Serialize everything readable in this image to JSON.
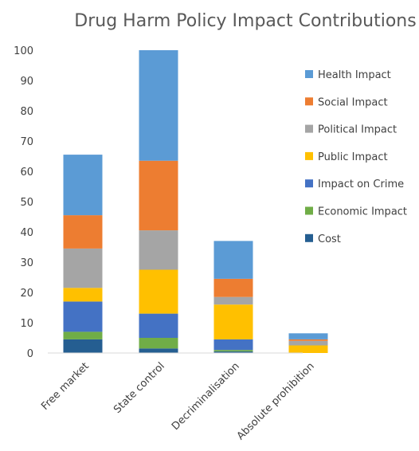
{
  "chart_data": {
    "type": "bar",
    "stacked": true,
    "title": "Drug Harm Policy Impact Contributions",
    "xlabel": "",
    "ylabel": "",
    "ylim": [
      0,
      100
    ],
    "yticks": [
      0,
      10,
      20,
      30,
      40,
      50,
      60,
      70,
      80,
      90,
      100
    ],
    "grid": false,
    "legend_position": "right",
    "categories": [
      "Free market",
      "State control",
      "Decriminalisation",
      "Absolute prohibition"
    ],
    "series": [
      {
        "name": "Cost",
        "color": "#255e91",
        "values": [
          4.5,
          1.5,
          0.5,
          0
        ]
      },
      {
        "name": "Economic Impact",
        "color": "#70ad47",
        "values": [
          2.5,
          3.5,
          0.5,
          0
        ]
      },
      {
        "name": "Impact on Crime",
        "color": "#4472c4",
        "values": [
          10,
          8,
          3.5,
          0
        ]
      },
      {
        "name": "Public Impact",
        "color": "#ffc000",
        "values": [
          4.5,
          14.5,
          11.5,
          2.5
        ]
      },
      {
        "name": "Political Impact",
        "color": "#a5a5a5",
        "values": [
          13,
          13,
          2.5,
          1.5
        ]
      },
      {
        "name": "Social Impact",
        "color": "#ed7d31",
        "values": [
          11,
          23,
          6,
          0.5
        ]
      },
      {
        "name": "Health Impact",
        "color": "#5b9bd5",
        "values": [
          20,
          36.5,
          12.5,
          2
        ]
      }
    ],
    "legend_order": [
      "Health Impact",
      "Social Impact",
      "Political Impact",
      "Public Impact",
      "Impact on Crime",
      "Economic Impact",
      "Cost"
    ]
  }
}
